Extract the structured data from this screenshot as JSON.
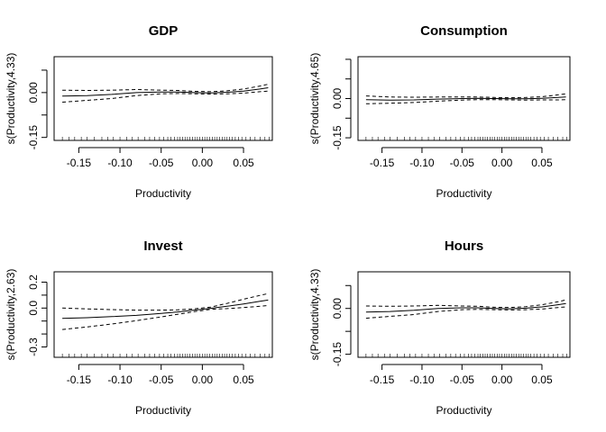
{
  "chart_data": [
    {
      "type": "line",
      "title": "GDP",
      "xlabel": "Productivity",
      "ylabel": "s(Productivity,4.33)",
      "xlim": [
        -0.18,
        0.085
      ],
      "ylim": [
        -0.16,
        0.12
      ],
      "xticks": [
        -0.15,
        -0.1,
        -0.05,
        0.0,
        0.05
      ],
      "xtick_labels": [
        "-0.15",
        "-0.10",
        "-0.05",
        "0.00",
        "0.05"
      ],
      "yticks": [
        -0.15,
        -0.075,
        0.0,
        0.075
      ],
      "ytick_labels": [
        "-0.15",
        "",
        "0.00",
        ""
      ],
      "grid": false,
      "x": [
        -0.17,
        -0.14,
        -0.11,
        -0.08,
        -0.05,
        -0.03,
        -0.01,
        0.01,
        0.03,
        0.05,
        0.07,
        0.08
      ],
      "series": [
        {
          "style": "solid",
          "y": [
            -0.012,
            -0.01,
            -0.006,
            0.0,
            0.002,
            0.002,
            0.0,
            -0.001,
            0.001,
            0.005,
            0.012,
            0.016
          ]
        },
        {
          "style": "dashed",
          "y": [
            0.008,
            0.007,
            0.008,
            0.01,
            0.008,
            0.007,
            0.004,
            0.003,
            0.006,
            0.012,
            0.022,
            0.028
          ]
        },
        {
          "style": "dashed",
          "y": [
            -0.032,
            -0.026,
            -0.02,
            -0.01,
            -0.004,
            -0.003,
            -0.004,
            -0.005,
            -0.004,
            -0.002,
            0.003,
            0.005
          ]
        }
      ],
      "rug": [
        -0.17,
        -0.162,
        -0.155,
        -0.147,
        -0.14,
        -0.131,
        -0.122,
        -0.115,
        -0.108,
        -0.1,
        -0.092,
        -0.085,
        -0.078,
        -0.07,
        -0.064,
        -0.058,
        -0.052,
        -0.047,
        -0.042,
        -0.038,
        -0.034,
        -0.03,
        -0.027,
        -0.024,
        -0.021,
        -0.018,
        -0.015,
        -0.012,
        -0.009,
        -0.006,
        -0.003,
        0.0,
        0.003,
        0.006,
        0.009,
        0.012,
        0.015,
        0.018,
        0.021,
        0.024,
        0.027,
        0.03,
        0.033,
        0.036,
        0.04,
        0.044,
        0.048,
        0.053,
        0.058,
        0.064,
        0.07,
        0.076,
        0.081
      ]
    },
    {
      "type": "line",
      "title": "Consumption",
      "xlabel": "Productivity",
      "ylabel": "s(Productivity,4.65)",
      "xlim": [
        -0.18,
        0.085
      ],
      "ylim": [
        -0.16,
        0.16
      ],
      "xticks": [
        -0.15,
        -0.1,
        -0.05,
        0.0,
        0.05
      ],
      "xtick_labels": [
        "-0.15",
        "-0.10",
        "-0.05",
        "0.00",
        "0.05"
      ],
      "yticks": [
        -0.15,
        -0.075,
        0.0,
        0.075,
        0.15
      ],
      "ytick_labels": [
        "-0.15",
        "",
        "0.00",
        "",
        ""
      ],
      "grid": false,
      "x": [
        -0.17,
        -0.14,
        -0.11,
        -0.08,
        -0.05,
        -0.03,
        -0.01,
        0.01,
        0.03,
        0.05,
        0.07,
        0.08
      ],
      "series": [
        {
          "style": "solid",
          "y": [
            -0.004,
            -0.006,
            -0.005,
            -0.002,
            0.0,
            0.001,
            0.0,
            -0.001,
            -0.001,
            0.001,
            0.004,
            0.006
          ]
        },
        {
          "style": "dashed",
          "y": [
            0.01,
            0.006,
            0.005,
            0.006,
            0.006,
            0.006,
            0.004,
            0.003,
            0.004,
            0.007,
            0.014,
            0.018
          ]
        },
        {
          "style": "dashed",
          "y": [
            -0.02,
            -0.018,
            -0.015,
            -0.01,
            -0.006,
            -0.004,
            -0.004,
            -0.005,
            -0.006,
            -0.005,
            -0.005,
            -0.004
          ]
        }
      ],
      "rug": [
        -0.17,
        -0.162,
        -0.155,
        -0.147,
        -0.14,
        -0.131,
        -0.122,
        -0.115,
        -0.108,
        -0.1,
        -0.092,
        -0.085,
        -0.078,
        -0.07,
        -0.064,
        -0.058,
        -0.052,
        -0.047,
        -0.042,
        -0.038,
        -0.034,
        -0.03,
        -0.027,
        -0.024,
        -0.021,
        -0.018,
        -0.015,
        -0.012,
        -0.009,
        -0.006,
        -0.003,
        0.0,
        0.003,
        0.006,
        0.009,
        0.012,
        0.015,
        0.018,
        0.021,
        0.024,
        0.027,
        0.03,
        0.033,
        0.036,
        0.04,
        0.044,
        0.048,
        0.053,
        0.058,
        0.064,
        0.07,
        0.076,
        0.081
      ]
    },
    {
      "type": "line",
      "title": "Invest",
      "xlabel": "Productivity",
      "ylabel": "s(Productivity,2.63)",
      "xlim": [
        -0.18,
        0.085
      ],
      "ylim": [
        -0.38,
        0.28
      ],
      "xticks": [
        -0.15,
        -0.1,
        -0.05,
        0.0,
        0.05
      ],
      "xtick_labels": [
        "-0.15",
        "-0.10",
        "-0.05",
        "0.00",
        "0.05"
      ],
      "yticks": [
        -0.3,
        -0.2,
        -0.1,
        0.0,
        0.1,
        0.2
      ],
      "ytick_labels": [
        "-0.3",
        "",
        "",
        "0.0",
        "",
        "0.2"
      ],
      "grid": false,
      "x": [
        -0.17,
        -0.14,
        -0.11,
        -0.08,
        -0.05,
        -0.03,
        -0.01,
        0.01,
        0.03,
        0.05,
        0.07,
        0.08
      ],
      "series": [
        {
          "style": "solid",
          "y": [
            -0.08,
            -0.074,
            -0.066,
            -0.056,
            -0.042,
            -0.03,
            -0.016,
            -0.002,
            0.014,
            0.032,
            0.052,
            0.062
          ]
        },
        {
          "style": "dashed",
          "y": [
            0.0,
            -0.006,
            -0.012,
            -0.016,
            -0.016,
            -0.014,
            -0.006,
            0.008,
            0.036,
            0.068,
            0.098,
            0.112
          ]
        },
        {
          "style": "dashed",
          "y": [
            -0.165,
            -0.146,
            -0.123,
            -0.097,
            -0.068,
            -0.048,
            -0.028,
            -0.01,
            -0.004,
            0.004,
            0.014,
            0.02
          ]
        }
      ],
      "rug": [
        -0.17,
        -0.162,
        -0.155,
        -0.147,
        -0.14,
        -0.131,
        -0.122,
        -0.115,
        -0.108,
        -0.1,
        -0.092,
        -0.085,
        -0.078,
        -0.07,
        -0.064,
        -0.058,
        -0.052,
        -0.047,
        -0.042,
        -0.038,
        -0.034,
        -0.03,
        -0.027,
        -0.024,
        -0.021,
        -0.018,
        -0.015,
        -0.012,
        -0.009,
        -0.006,
        -0.003,
        0.0,
        0.003,
        0.006,
        0.009,
        0.012,
        0.015,
        0.018,
        0.021,
        0.024,
        0.027,
        0.03,
        0.033,
        0.036,
        0.04,
        0.044,
        0.048,
        0.053,
        0.058,
        0.064,
        0.07,
        0.076,
        0.081
      ]
    },
    {
      "type": "line",
      "title": "Hours",
      "xlabel": "Productivity",
      "ylabel": "s(Productivity,4.33)",
      "xlim": [
        -0.18,
        0.085
      ],
      "ylim": [
        -0.16,
        0.12
      ],
      "xticks": [
        -0.15,
        -0.1,
        -0.05,
        0.0,
        0.05
      ],
      "xtick_labels": [
        "-0.15",
        "-0.10",
        "-0.05",
        "0.00",
        "0.05"
      ],
      "yticks": [
        -0.15,
        -0.075,
        0.0,
        0.075
      ],
      "ytick_labels": [
        "-0.15",
        "",
        "0.00",
        ""
      ],
      "grid": false,
      "x": [
        -0.17,
        -0.14,
        -0.11,
        -0.08,
        -0.05,
        -0.03,
        -0.01,
        0.01,
        0.03,
        0.05,
        0.07,
        0.08
      ],
      "series": [
        {
          "style": "solid",
          "y": [
            -0.012,
            -0.01,
            -0.006,
            0.0,
            0.002,
            0.002,
            0.0,
            -0.001,
            0.001,
            0.005,
            0.012,
            0.016
          ]
        },
        {
          "style": "dashed",
          "y": [
            0.008,
            0.007,
            0.008,
            0.01,
            0.008,
            0.007,
            0.004,
            0.003,
            0.006,
            0.012,
            0.022,
            0.028
          ]
        },
        {
          "style": "dashed",
          "y": [
            -0.032,
            -0.026,
            -0.02,
            -0.01,
            -0.004,
            -0.003,
            -0.004,
            -0.005,
            -0.004,
            -0.002,
            0.003,
            0.005
          ]
        }
      ],
      "rug": [
        -0.17,
        -0.162,
        -0.155,
        -0.147,
        -0.14,
        -0.131,
        -0.122,
        -0.115,
        -0.108,
        -0.1,
        -0.092,
        -0.085,
        -0.078,
        -0.07,
        -0.064,
        -0.058,
        -0.052,
        -0.047,
        -0.042,
        -0.038,
        -0.034,
        -0.03,
        -0.027,
        -0.024,
        -0.021,
        -0.018,
        -0.015,
        -0.012,
        -0.009,
        -0.006,
        -0.003,
        0.0,
        0.003,
        0.006,
        0.009,
        0.012,
        0.015,
        0.018,
        0.021,
        0.024,
        0.027,
        0.03,
        0.033,
        0.036,
        0.04,
        0.044,
        0.048,
        0.053,
        0.058,
        0.064,
        0.07,
        0.076,
        0.081
      ]
    }
  ]
}
